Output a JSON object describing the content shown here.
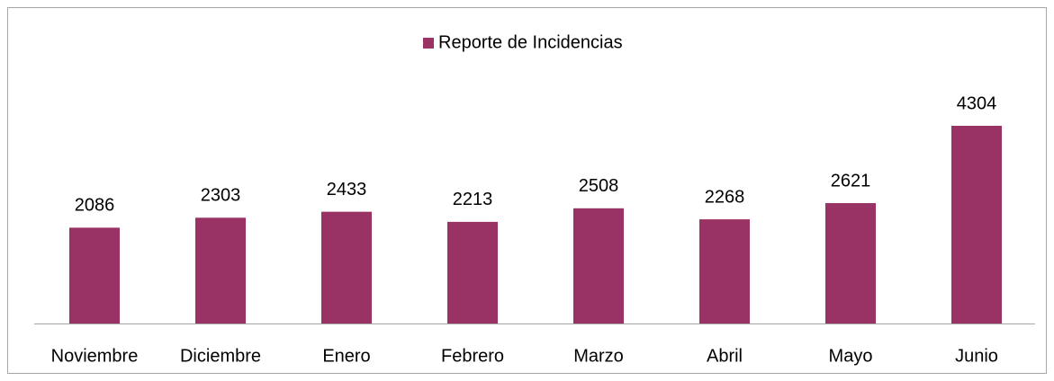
{
  "chart_data": {
    "type": "bar",
    "series": [
      {
        "name": "Reporte de Incidencias",
        "color": "#993366",
        "values": [
          2086,
          2303,
          2433,
          2213,
          2508,
          2268,
          2621,
          4304
        ]
      }
    ],
    "categories": [
      "Noviembre",
      "Diciembre",
      "Enero",
      "Febrero",
      "Marzo",
      "Abril",
      "Mayo",
      "Junio"
    ],
    "legend": "top"
  }
}
